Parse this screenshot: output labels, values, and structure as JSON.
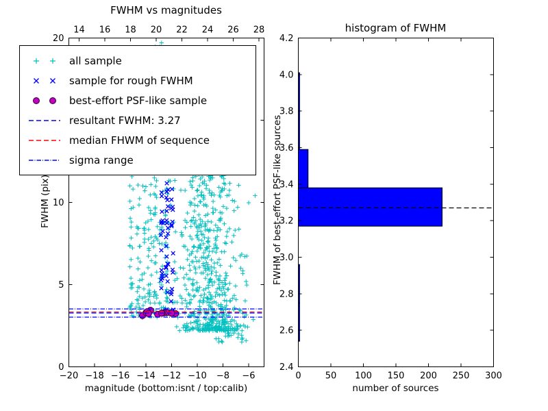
{
  "figure": {
    "background": "#ffffff",
    "text_color": "#000000",
    "axis_color": "#000000"
  },
  "left_plot": {
    "title": "FWHM vs magnitudes",
    "xlabel": "magnitude (bottom:isnt / top:calib)",
    "ylabel": "FWHM (pix)"
  },
  "right_plot": {
    "title": "histogram of FWHM",
    "xlabel": "number of sources",
    "ylabel": "FWHM of best-effort PSF-like sources"
  },
  "legend": {
    "items": [
      {
        "label": "all sample",
        "marker": "plus",
        "color": "#00bfbf"
      },
      {
        "label": "sample for rough FWHM",
        "marker": "x",
        "color": "#0000ff"
      },
      {
        "label": "best-effort PSF-like sample",
        "marker": "circle",
        "color": "#bf00bf",
        "edge": "#3d003d"
      },
      {
        "label": "resultant FWHM: 3.27",
        "marker": "dashed",
        "color": "#0000ff"
      },
      {
        "label": "median FHWM of sequence",
        "marker": "dashed",
        "color": "#ff0000"
      },
      {
        "label": "sigma range",
        "marker": "dashdot",
        "color": "#0000ff"
      }
    ]
  },
  "chart_data": [
    {
      "type": "scatter",
      "title": "FWHM vs magnitudes",
      "xlabel": "magnitude (bottom:isnt / top:calib)",
      "ylabel": "FWHM (pix)",
      "xlim": [
        -20,
        -4.8
      ],
      "ylim": [
        0,
        20
      ],
      "x_ticks_bottom": {
        "values": [
          -20,
          -18,
          -16,
          -14,
          -12,
          -10,
          -8,
          -6
        ],
        "labels": [
          "−20",
          "−18",
          "−16",
          "−14",
          "−12",
          "−10",
          "−8",
          "−6"
        ]
      },
      "x_ticks_top": {
        "axis_range": [
          13.2,
          28.4
        ],
        "values": [
          14,
          16,
          18,
          20,
          22,
          24,
          26,
          28
        ],
        "labels": [
          "14",
          "16",
          "18",
          "20",
          "22",
          "24",
          "26",
          "28"
        ]
      },
      "y_ticks": {
        "values": [
          0,
          5,
          10,
          15,
          20
        ],
        "labels": [
          "0",
          "5",
          "10",
          "15",
          "20"
        ]
      },
      "resultant_fwhm": 3.27,
      "series": [
        {
          "name": "all sample",
          "marker": "plus",
          "color": "#00bfbf"
        },
        {
          "name": "sample for rough FWHM",
          "marker": "x",
          "color": "#0000ff"
        },
        {
          "name": "best-effort PSF-like sample",
          "marker": "circle",
          "color": "#bf00bf"
        }
      ],
      "clusters": [
        {
          "name": "all-sample-cloud",
          "marker": "plus",
          "color": "#00bfbf",
          "seed": 11,
          "count": 600,
          "x_mean": -9.0,
          "x_sd": 1.25,
          "x_min": -12.1,
          "x_max": -5.4,
          "y_min": 2.2,
          "y_max": 13,
          "y_pow": 1.9
        },
        {
          "name": "all-sample-bright-columns",
          "marker": "plus",
          "color": "#00bfbf",
          "seed": 22,
          "count": 280,
          "columns": [
            -15.1,
            -14.6,
            -14.15,
            -13.7,
            -13.25,
            -12.8,
            -12.35
          ],
          "col_jitter": 0.16,
          "y_min": 3.0,
          "y_max": 19.8,
          "y_pow": 1.6
        },
        {
          "name": "all-sample-high",
          "marker": "plus",
          "color": "#00bfbf",
          "seed": 33,
          "count": 90,
          "x_mean": -10.4,
          "x_sd": 1.2,
          "x_min": -12.6,
          "x_max": -7.2,
          "y_min": 7,
          "y_max": 17,
          "y_pow": 1.2
        },
        {
          "name": "all-sample-faint-low",
          "marker": "plus",
          "color": "#00bfbf",
          "seed": 44,
          "count": 30,
          "x_min": -9.2,
          "x_max": -6.0,
          "y_min": 1.5,
          "y_max": 2.6,
          "y_pow": 1
        },
        {
          "name": "rough-fwhm-sample",
          "marker": "x",
          "color": "#0000ff",
          "seed": 55,
          "count": 60,
          "columns": [
            -12.75,
            -12.35,
            -11.95
          ],
          "col_jitter": 0.09,
          "y_min": 3.1,
          "y_max": 11.2,
          "y_pow": 1.2
        },
        {
          "name": "psf-like-sample",
          "marker": "circle",
          "color": "#bf00bf",
          "edge": "#3d003d",
          "seed": 66,
          "count": 13,
          "x_min": -14.4,
          "x_max": -11.6,
          "y_mean": 3.27,
          "y_sd": 0.05
        }
      ],
      "lines": [
        {
          "name": "resultant FWHM",
          "y": 3.27,
          "color": "#0000ff",
          "dash": "7,4"
        },
        {
          "name": "median FHWM of sequence",
          "y": 3.33,
          "color": "#ff0000",
          "dash": "7,4"
        },
        {
          "name": "sigma range low",
          "y": 3.02,
          "color": "#0000ff",
          "dash": "6.5,2,1,2"
        },
        {
          "name": "sigma range high",
          "y": 3.52,
          "color": "#0000ff",
          "dash": "6.5,2,1,2"
        }
      ]
    },
    {
      "type": "bar",
      "orientation": "horizontal",
      "title": "histogram of FWHM",
      "xlabel": "number of sources",
      "ylabel": "FWHM of best-effort PSF-like sources",
      "xlim": [
        0,
        300
      ],
      "ylim": [
        2.4,
        4.2
      ],
      "x_ticks": {
        "values": [
          0,
          50,
          100,
          150,
          200,
          250,
          300
        ],
        "labels": [
          "0",
          "50",
          "100",
          "150",
          "200",
          "250",
          "300"
        ]
      },
      "y_ticks": {
        "values": [
          2.4,
          2.6,
          2.8,
          3.0,
          3.2,
          3.4,
          3.6,
          3.8,
          4.0,
          4.2
        ],
        "labels": [
          "2.4",
          "2.6",
          "2.8",
          "3.0",
          "3.2",
          "3.4",
          "3.6",
          "3.8",
          "4.0",
          "4.2"
        ]
      },
      "bar_color": "#0000ff",
      "bar_edge": "#000000",
      "bins": {
        "edges": [
          2.54,
          2.75,
          2.96,
          3.17,
          3.38,
          3.59,
          3.8,
          4.01
        ],
        "counts": [
          2,
          2,
          0,
          221,
          15,
          2,
          2
        ]
      },
      "median_line": {
        "y": 3.27,
        "color": "#000000",
        "dash": "7,4"
      }
    }
  ]
}
